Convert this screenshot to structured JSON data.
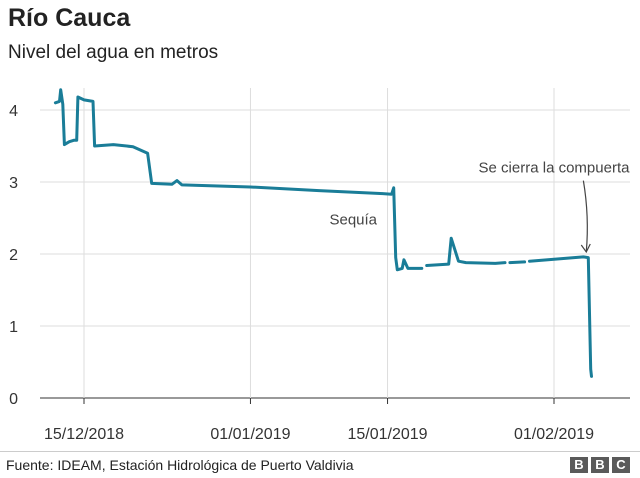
{
  "chart_data": {
    "type": "line",
    "title": "Río Cauca",
    "subtitle": "Nivel del agua en metros",
    "xlabel": "",
    "ylabel": "",
    "ylim": [
      0,
      4.4
    ],
    "y_ticks": [
      0,
      1,
      2,
      3,
      4
    ],
    "x_ticks": [
      {
        "date": "2018-12-15",
        "label": "15/12/2018"
      },
      {
        "date": "2019-01-01",
        "label": "01/01/2019"
      },
      {
        "date": "2019-01-15",
        "label": "15/01/2019"
      },
      {
        "date": "2019-02-01",
        "label": "01/02/2019"
      }
    ],
    "grid": true,
    "series": [
      {
        "color": "#1a7d98",
        "values": [
          [
            "2018-12-12 02:00",
            4.1
          ],
          [
            "2018-12-12 12:00",
            4.12
          ],
          [
            "2018-12-12 15:00",
            4.28
          ],
          [
            "2018-12-12 20:00",
            4.08
          ],
          [
            "2018-12-13 00:00",
            3.52
          ],
          [
            "2018-12-13 12:00",
            3.56
          ],
          [
            "2018-12-14 00:00",
            3.58
          ],
          [
            "2018-12-14 06:00",
            3.58
          ],
          [
            "2018-12-14 09:00",
            4.18
          ],
          [
            "2018-12-15 00:00",
            4.14
          ],
          [
            "2018-12-15 22:00",
            4.12
          ],
          [
            "2018-12-16 02:00",
            3.5
          ],
          [
            "2018-12-18 00:00",
            3.52
          ],
          [
            "2018-12-20 00:00",
            3.49
          ],
          [
            "2018-12-21 12:00",
            3.4
          ],
          [
            "2018-12-21 22:00",
            2.98
          ],
          [
            "2018-12-24 00:00",
            2.97
          ],
          [
            "2018-12-24 12:00",
            3.02
          ],
          [
            "2018-12-25 00:00",
            2.96
          ],
          [
            "2019-01-01 00:00",
            2.93
          ],
          [
            "2019-01-08 00:00",
            2.88
          ],
          [
            "2019-01-14 06:00",
            2.84
          ],
          [
            "2019-01-15 10:00",
            2.83
          ],
          [
            "2019-01-15 15:00",
            2.92
          ],
          [
            "2019-01-15 20:00",
            1.95
          ],
          [
            "2019-01-16 00:00",
            1.78
          ],
          [
            "2019-01-16 12:00",
            1.8
          ],
          [
            "2019-01-16 16:00",
            1.92
          ],
          [
            "2019-01-17 02:00",
            1.8
          ],
          [
            "2019-01-18 00:00",
            1.8
          ],
          [
            "2019-01-18 12:00",
            1.8
          ],
          null,
          [
            "2019-01-19 00:00",
            1.84
          ],
          [
            "2019-01-21 06:00",
            1.86
          ],
          [
            "2019-01-21 12:00",
            2.22
          ],
          [
            "2019-01-22 06:00",
            1.9
          ],
          [
            "2019-01-23 00:00",
            1.88
          ],
          [
            "2019-01-26 00:00",
            1.87
          ],
          [
            "2019-01-27 00:00",
            1.88
          ],
          null,
          [
            "2019-01-27 12:00",
            1.88
          ],
          [
            "2019-01-29 00:00",
            1.89
          ],
          null,
          [
            "2019-01-29 12:00",
            1.9
          ],
          [
            "2019-02-04 00:00",
            1.96
          ],
          [
            "2019-02-04 12:00",
            1.95
          ],
          [
            "2019-02-04 18:00",
            0.4
          ],
          [
            "2019-02-04 20:00",
            0.3
          ]
        ]
      }
    ],
    "annotations": [
      {
        "text": "Sequía",
        "date": "2019-01-11 12:00",
        "y": 2.41
      },
      {
        "text": "Se cierra la compuerta",
        "date": "2019-02-01 00:00",
        "y": 3.13,
        "arrow_to": [
          "2019-02-04 12:00",
          2.0
        ]
      }
    ]
  },
  "footer": {
    "source": "Fuente: IDEAM, Estación Hidrológica de Puerto Valdivia",
    "logo_letters": [
      "B",
      "B",
      "C"
    ]
  }
}
